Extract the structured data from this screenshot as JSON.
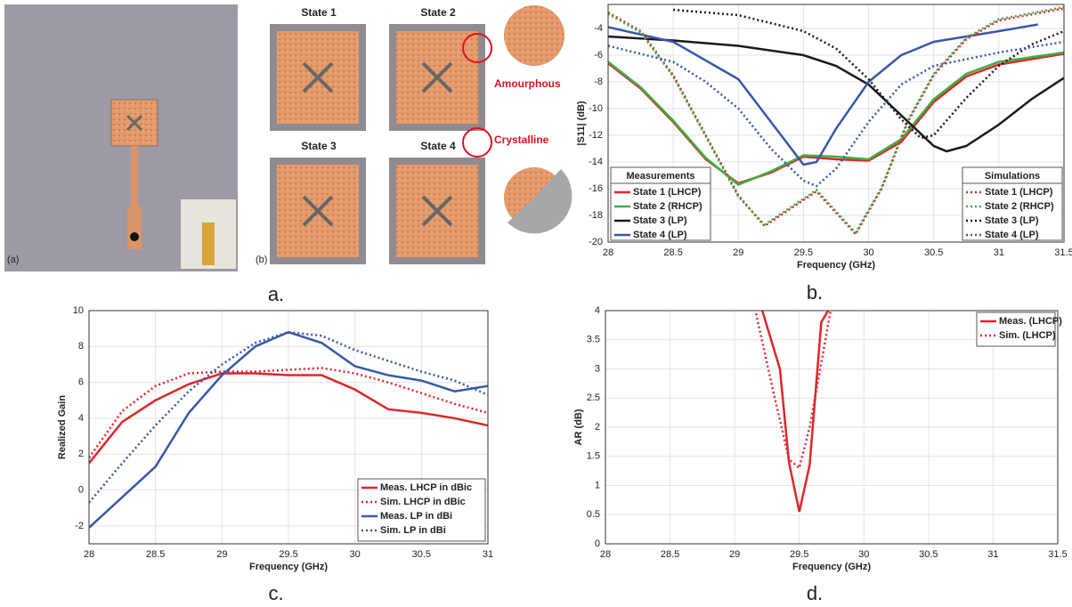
{
  "figure": {
    "captions": [
      "a.",
      "b.",
      "c.",
      "d."
    ],
    "photo": {
      "labels": [
        "(a)",
        "(b)"
      ],
      "states": [
        "State 1",
        "State 2",
        "State 3",
        "State 4"
      ],
      "callouts": [
        "Amourphous",
        "Crystalline"
      ]
    }
  },
  "chart_data": [
    {
      "type": "line",
      "xlabel": "Frequency (GHz)",
      "ylabel": "|S11| (dB)",
      "xlim": [
        28,
        31.5
      ],
      "ylim": [
        -20,
        -2.2
      ],
      "xticks": [
        28,
        28.5,
        29,
        29.5,
        30,
        30.5,
        31,
        31.5
      ],
      "yticks": [
        -20,
        -18,
        -16,
        -14,
        -12,
        -10,
        -8,
        -6,
        -4
      ],
      "grid": true,
      "legend_titles": {
        "solid": "Measurements",
        "dotted": "Simulations"
      },
      "series": [
        {
          "name": "State 1 (LHCP)",
          "color": "#e0262b",
          "dash": "solid",
          "x": [
            28,
            28.25,
            28.5,
            28.75,
            29,
            29.25,
            29.5,
            29.75,
            30,
            30.25,
            30.5,
            30.75,
            31,
            31.5
          ],
          "values": [
            -6.6,
            -8.5,
            -11,
            -13.8,
            -15.6,
            -14.8,
            -13.6,
            -13.8,
            -13.9,
            -12.5,
            -9.5,
            -7.6,
            -6.7,
            -5.9
          ]
        },
        {
          "name": "State 2 (RHCP)",
          "color": "#3cb043",
          "dash": "solid",
          "x": [
            28,
            28.25,
            28.5,
            28.75,
            29,
            29.25,
            29.5,
            29.75,
            30,
            30.25,
            30.5,
            30.75,
            31,
            31.5
          ],
          "values": [
            -6.5,
            -8.4,
            -10.9,
            -13.7,
            -15.7,
            -14.7,
            -13.5,
            -13.6,
            -13.8,
            -12.3,
            -9.3,
            -7.4,
            -6.5,
            -5.8
          ]
        },
        {
          "name": "State 3 (LP)",
          "color": "#1a1a1a",
          "dash": "solid",
          "x": [
            28,
            28.5,
            29,
            29.5,
            29.75,
            30,
            30.25,
            30.5,
            30.6,
            30.75,
            31,
            31.25,
            31.5
          ],
          "values": [
            -4.6,
            -4.9,
            -5.3,
            -6,
            -6.8,
            -8.2,
            -10.5,
            -12.8,
            -13.2,
            -12.8,
            -11.2,
            -9.3,
            -7.7
          ]
        },
        {
          "name": "State 4 (LP)",
          "color": "#3a57a8",
          "dash": "solid",
          "x": [
            28,
            28.5,
            29,
            29.25,
            29.5,
            29.6,
            29.75,
            30,
            30.25,
            30.5,
            31,
            31.3
          ],
          "values": [
            -3.9,
            -5,
            -7.8,
            -11,
            -14.2,
            -14,
            -11.5,
            -8,
            -6,
            -5,
            -4.2,
            -3.7
          ]
        },
        {
          "name": "State 1 (LHCP)",
          "color": "#e0262b",
          "dash": "dotted",
          "x": [
            28,
            28.25,
            28.5,
            28.75,
            29,
            29.2,
            29.4,
            29.6,
            29.75,
            29.9,
            30.1,
            30.3,
            30.5,
            30.75,
            31,
            31.5
          ],
          "values": [
            -2.8,
            -4.2,
            -7.5,
            -12,
            -16.5,
            -18.8,
            -17.5,
            -16.2,
            -17.8,
            -19.4,
            -16,
            -11,
            -7.5,
            -4.8,
            -3.4,
            -2.5
          ]
        },
        {
          "name": "State 2 (RHCP)",
          "color": "#3cb043",
          "dash": "dotted",
          "x": [
            28,
            28.25,
            28.5,
            28.75,
            29,
            29.2,
            29.4,
            29.6,
            29.75,
            29.9,
            30.1,
            30.3,
            30.5,
            30.75,
            31,
            31.5
          ],
          "values": [
            -2.9,
            -4.3,
            -7.6,
            -12.1,
            -16.6,
            -18.7,
            -17.4,
            -16.1,
            -17.7,
            -19.3,
            -15.9,
            -10.9,
            -7.4,
            -4.7,
            -3.3,
            -2.4
          ]
        },
        {
          "name": "State 3 (LP)",
          "color": "#1a1a1a",
          "dash": "dotted",
          "x": [
            28.5,
            29,
            29.5,
            29.75,
            30,
            30.25,
            30.4,
            30.5,
            30.75,
            31,
            31.25,
            31.5
          ],
          "values": [
            -2.6,
            -3,
            -4.2,
            -5.5,
            -7.8,
            -10.8,
            -12.2,
            -12,
            -9.2,
            -6.8,
            -5.2,
            -4.2
          ]
        },
        {
          "name": "State 4 (LP)",
          "color": "#3a57a8",
          "dash": "dotted",
          "x": [
            28,
            28.5,
            28.75,
            29,
            29.25,
            29.5,
            29.6,
            29.75,
            30,
            30.25,
            30.5,
            31,
            31.5
          ],
          "values": [
            -5.3,
            -6.5,
            -8,
            -10,
            -13,
            -15.4,
            -15.8,
            -14.5,
            -11,
            -8.2,
            -6.8,
            -5.8,
            -5
          ]
        }
      ]
    },
    {
      "type": "line",
      "xlabel": "Frequency (GHz)",
      "ylabel": "Realized Gain",
      "xlim": [
        28,
        31
      ],
      "ylim": [
        -3,
        10
      ],
      "xticks": [
        28,
        28.5,
        29,
        29.5,
        30,
        30.5,
        31
      ],
      "yticks": [
        -2,
        0,
        2,
        4,
        6,
        8,
        10
      ],
      "grid": true,
      "legend": "lower right",
      "series": [
        {
          "name": "Meas. LHCP in dBic",
          "color": "#e0262b",
          "dash": "solid",
          "x": [
            28,
            28.25,
            28.5,
            28.75,
            29,
            29.25,
            29.5,
            29.75,
            30,
            30.25,
            30.5,
            30.75,
            31
          ],
          "values": [
            1.5,
            3.8,
            5,
            5.9,
            6.5,
            6.5,
            6.4,
            6.4,
            5.6,
            4.5,
            4.3,
            4,
            3.6
          ]
        },
        {
          "name": "Sim. LHCP in dBic",
          "color": "#e0262b",
          "dash": "dotted",
          "x": [
            28,
            28.25,
            28.5,
            28.75,
            29,
            29.25,
            29.5,
            29.75,
            30,
            30.25,
            30.5,
            30.75,
            31
          ],
          "values": [
            1.8,
            4.4,
            5.8,
            6.5,
            6.6,
            6.6,
            6.7,
            6.8,
            6.5,
            6,
            5.4,
            4.8,
            4.3
          ]
        },
        {
          "name": "Meas. LP in dBi",
          "color": "#3a57a8",
          "dash": "solid",
          "x": [
            28,
            28.25,
            28.5,
            28.75,
            29,
            29.25,
            29.5,
            29.75,
            30,
            30.25,
            30.5,
            30.75,
            31
          ],
          "values": [
            -2.1,
            -0.4,
            1.3,
            4.3,
            6.4,
            8,
            8.8,
            8.2,
            6.9,
            6.4,
            6.1,
            5.5,
            5.8
          ]
        },
        {
          "name": "Sim. LP in dBi",
          "color": "#3a57a8",
          "dash": "dotted",
          "x": [
            28,
            28.25,
            28.5,
            28.75,
            29,
            29.25,
            29.5,
            29.75,
            30,
            30.25,
            30.5,
            30.75,
            31
          ],
          "values": [
            -0.7,
            1.5,
            3.6,
            5.5,
            7,
            8.2,
            8.8,
            8.6,
            7.8,
            7.2,
            6.6,
            6.1,
            5.3
          ]
        }
      ]
    },
    {
      "type": "line",
      "xlabel": "Frequency (GHz)",
      "ylabel": "AR (dB)",
      "xlim": [
        28,
        31.5
      ],
      "ylim": [
        0,
        4
      ],
      "xticks": [
        28,
        28.5,
        29,
        29.5,
        30,
        30.5,
        31,
        31.5
      ],
      "yticks": [
        0,
        0.5,
        1,
        1.5,
        2,
        2.5,
        3,
        3.5,
        4
      ],
      "grid": true,
      "legend": "upper right",
      "series": [
        {
          "name": "Meas. (LHCP)",
          "color": "#e0262b",
          "dash": "solid",
          "x": [
            29.2,
            29.35,
            29.42,
            29.5,
            29.58,
            29.67,
            29.75
          ],
          "values": [
            4.1,
            3,
            1.4,
            0.55,
            1.35,
            3.8,
            4.1
          ]
        },
        {
          "name": "Sim. (LHCP)",
          "color": "#e0262b",
          "dash": "dotted",
          "x": [
            29.15,
            29.3,
            29.42,
            29.5,
            29.58,
            29.67,
            29.75
          ],
          "values": [
            4.1,
            2.6,
            1.45,
            1.3,
            2,
            3.1,
            4.1
          ]
        }
      ]
    }
  ]
}
